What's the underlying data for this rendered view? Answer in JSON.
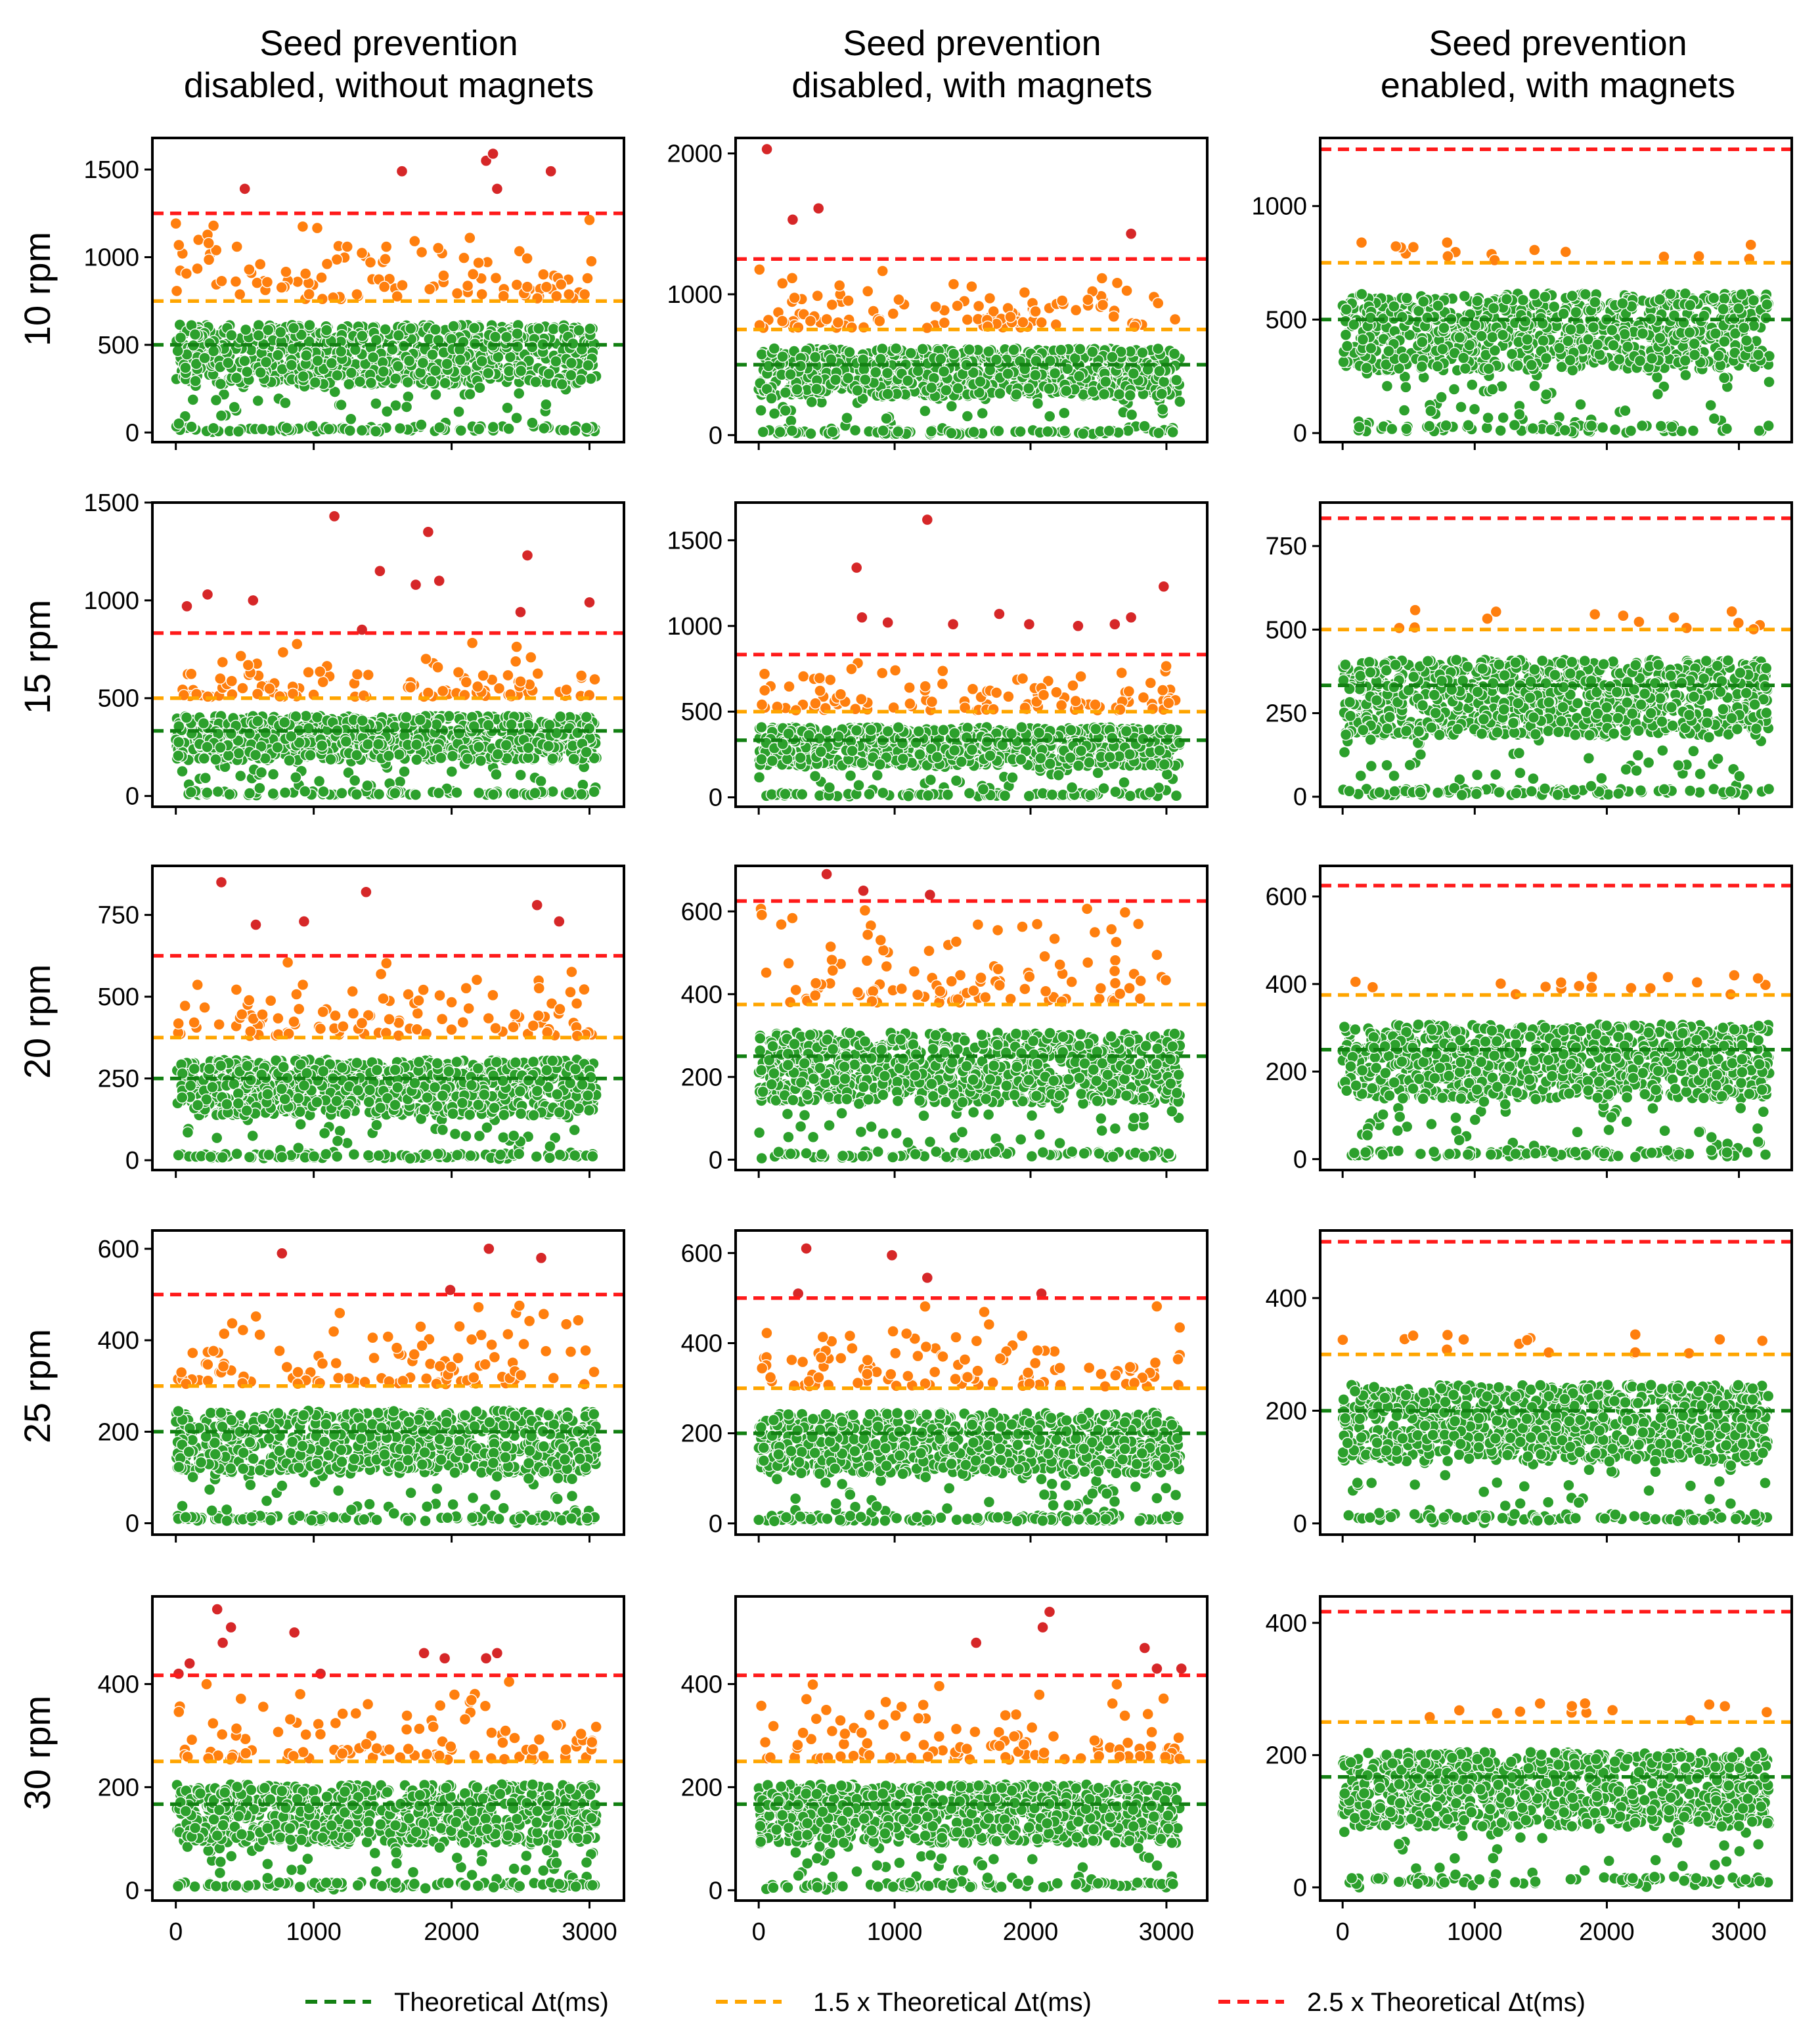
{
  "column_titles": [
    [
      "Seed prevention",
      "disabled, without magnets"
    ],
    [
      "Seed prevention",
      "disabled, with magnets"
    ],
    [
      "Seed prevention",
      "enabled, with magnets"
    ]
  ],
  "row_labels": [
    "10 rpm",
    "15 rpm",
    "20 rpm",
    "25 rpm",
    "30 rpm"
  ],
  "legend": [
    {
      "label": "Theoretical Δt(ms)",
      "color": "#138013"
    },
    {
      "label": "1.5 x Theoretical Δt(ms)",
      "color": "#ffa500"
    },
    {
      "label": "2.5 x Theoretical Δt(ms)",
      "color": "#ff1a1a"
    }
  ],
  "colors": {
    "green": "#2ca02c",
    "orange": "#ff7f0e",
    "red": "#d62728"
  },
  "chart_data": {
    "type": "scatter",
    "xlabel": "",
    "ylabel": "",
    "x_ticks": [
      0,
      1000,
      2000,
      3000
    ],
    "panels": [
      {
        "row": 0,
        "col": 0,
        "rpm": 10,
        "n": 3050,
        "xlim": [
          -170,
          3250
        ],
        "ylim": [
          -55,
          1680
        ],
        "yticks": [
          0,
          500,
          1000,
          1500
        ],
        "theoretical": 500,
        "x1_5": 750,
        "x2_5": 1250,
        "red_points": [
          [
            500,
            1390
          ],
          [
            1640,
            1490
          ],
          [
            2250,
            1550
          ],
          [
            2300,
            1590
          ],
          [
            2330,
            1390
          ],
          [
            2720,
            1490
          ]
        ]
      },
      {
        "row": 0,
        "col": 1,
        "rpm": 10,
        "n": 3100,
        "xlim": [
          -170,
          3300
        ],
        "ylim": [
          -50,
          2110
        ],
        "yticks": [
          0,
          1000,
          2000
        ],
        "theoretical": 500,
        "x1_5": 750,
        "x2_5": 1250,
        "red_points": [
          [
            60,
            2030
          ],
          [
            250,
            1530
          ],
          [
            440,
            1610
          ],
          [
            2740,
            1430
          ]
        ]
      },
      {
        "row": 0,
        "col": 2,
        "rpm": 10,
        "n": 3230,
        "xlim": [
          -170,
          3400
        ],
        "ylim": [
          -40,
          1300
        ],
        "yticks": [
          0,
          500,
          1000
        ],
        "theoretical": 500,
        "x1_5": 750,
        "x2_5": 1250,
        "red_points": []
      },
      {
        "row": 1,
        "col": 0,
        "rpm": 15,
        "n": 3050,
        "xlim": [
          -170,
          3250
        ],
        "ylim": [
          -55,
          1500
        ],
        "yticks": [
          0,
          500,
          1000,
          1500
        ],
        "theoretical": 333,
        "x1_5": 500,
        "x2_5": 833,
        "red_points": [
          [
            80,
            970
          ],
          [
            230,
            1030
          ],
          [
            560,
            1000
          ],
          [
            1150,
            1430
          ],
          [
            1350,
            850
          ],
          [
            1480,
            1150
          ],
          [
            1740,
            1080
          ],
          [
            1830,
            1350
          ],
          [
            1910,
            1100
          ],
          [
            2500,
            940
          ],
          [
            2550,
            1230
          ],
          [
            3000,
            990
          ]
        ]
      },
      {
        "row": 1,
        "col": 1,
        "rpm": 15,
        "n": 3100,
        "xlim": [
          -170,
          3300
        ],
        "ylim": [
          -55,
          1720
        ],
        "yticks": [
          0,
          500,
          1000,
          1500
        ],
        "theoretical": 333,
        "x1_5": 500,
        "x2_5": 833,
        "red_points": [
          [
            720,
            1340
          ],
          [
            760,
            1050
          ],
          [
            950,
            1020
          ],
          [
            1240,
            1620
          ],
          [
            1430,
            1010
          ],
          [
            1770,
            1070
          ],
          [
            1990,
            1010
          ],
          [
            2350,
            1000
          ],
          [
            2620,
            1010
          ],
          [
            2740,
            1050
          ],
          [
            2980,
            1230
          ]
        ]
      },
      {
        "row": 1,
        "col": 2,
        "rpm": 15,
        "n": 3230,
        "xlim": [
          -170,
          3400
        ],
        "ylim": [
          -30,
          880
        ],
        "yticks": [
          0,
          250,
          500,
          750
        ],
        "theoretical": 333,
        "x1_5": 500,
        "x2_5": 833,
        "red_points": []
      },
      {
        "row": 2,
        "col": 0,
        "rpm": 20,
        "n": 3050,
        "xlim": [
          -170,
          3250
        ],
        "ylim": [
          -30,
          900
        ],
        "yticks": [
          0,
          250,
          500,
          750
        ],
        "theoretical": 250,
        "x1_5": 375,
        "x2_5": 625,
        "red_points": [
          [
            330,
            850
          ],
          [
            580,
            720
          ],
          [
            930,
            730
          ],
          [
            1380,
            820
          ],
          [
            2620,
            780
          ],
          [
            2780,
            730
          ]
        ]
      },
      {
        "row": 2,
        "col": 1,
        "rpm": 20,
        "n": 3100,
        "xlim": [
          -170,
          3300
        ],
        "ylim": [
          -25,
          710
        ],
        "yticks": [
          0,
          200,
          400,
          600
        ],
        "theoretical": 250,
        "x1_5": 375,
        "x2_5": 625,
        "red_points": [
          [
            500,
            690
          ],
          [
            770,
            650
          ],
          [
            1260,
            640
          ]
        ]
      },
      {
        "row": 2,
        "col": 2,
        "rpm": 20,
        "n": 3230,
        "xlim": [
          -170,
          3400
        ],
        "ylim": [
          -25,
          670
        ],
        "yticks": [
          0,
          200,
          400,
          600
        ],
        "theoretical": 250,
        "x1_5": 375,
        "x2_5": 625,
        "red_points": []
      },
      {
        "row": 3,
        "col": 0,
        "rpm": 25,
        "n": 3050,
        "xlim": [
          -170,
          3250
        ],
        "ylim": [
          -25,
          640
        ],
        "yticks": [
          0,
          200,
          400,
          600
        ],
        "theoretical": 200,
        "x1_5": 300,
        "x2_5": 500,
        "red_points": [
          [
            770,
            590
          ],
          [
            1990,
            510
          ],
          [
            2270,
            600
          ],
          [
            2650,
            580
          ]
        ]
      },
      {
        "row": 3,
        "col": 1,
        "rpm": 25,
        "n": 3100,
        "xlim": [
          -170,
          3300
        ],
        "ylim": [
          -25,
          650
        ],
        "yticks": [
          0,
          200,
          400,
          600
        ],
        "theoretical": 200,
        "x1_5": 300,
        "x2_5": 500,
        "red_points": [
          [
            290,
            510
          ],
          [
            350,
            610
          ],
          [
            980,
            595
          ],
          [
            1240,
            545
          ],
          [
            2080,
            510
          ]
        ]
      },
      {
        "row": 3,
        "col": 2,
        "rpm": 25,
        "n": 3230,
        "xlim": [
          -170,
          3400
        ],
        "ylim": [
          -20,
          520
        ],
        "yticks": [
          0,
          200,
          400
        ],
        "theoretical": 200,
        "x1_5": 300,
        "x2_5": 500,
        "red_points": []
      },
      {
        "row": 4,
        "col": 0,
        "rpm": 30,
        "n": 3050,
        "xlim": [
          -170,
          3250
        ],
        "ylim": [
          -20,
          570
        ],
        "yticks": [
          0,
          200,
          400
        ],
        "theoretical": 167,
        "x1_5": 250,
        "x2_5": 417,
        "red_points": [
          [
            20,
            420
          ],
          [
            100,
            440
          ],
          [
            300,
            545
          ],
          [
            340,
            480
          ],
          [
            400,
            510
          ],
          [
            860,
            500
          ],
          [
            1050,
            420
          ],
          [
            1800,
            460
          ],
          [
            1950,
            450
          ],
          [
            2250,
            450
          ],
          [
            2330,
            460
          ]
        ]
      },
      {
        "row": 4,
        "col": 1,
        "rpm": 30,
        "n": 3100,
        "xlim": [
          -170,
          3300
        ],
        "ylim": [
          -20,
          570
        ],
        "yticks": [
          0,
          200,
          400
        ],
        "theoretical": 167,
        "x1_5": 250,
        "x2_5": 417,
        "red_points": [
          [
            1600,
            480
          ],
          [
            2090,
            510
          ],
          [
            2140,
            540
          ],
          [
            2840,
            470
          ],
          [
            2930,
            430
          ],
          [
            3110,
            430
          ]
        ]
      },
      {
        "row": 4,
        "col": 2,
        "rpm": 30,
        "n": 3230,
        "xlim": [
          -170,
          3400
        ],
        "ylim": [
          -20,
          440
        ],
        "yticks": [
          0,
          200,
          400
        ],
        "theoretical": 167,
        "x1_5": 250,
        "x2_5": 417,
        "red_points": []
      }
    ]
  }
}
